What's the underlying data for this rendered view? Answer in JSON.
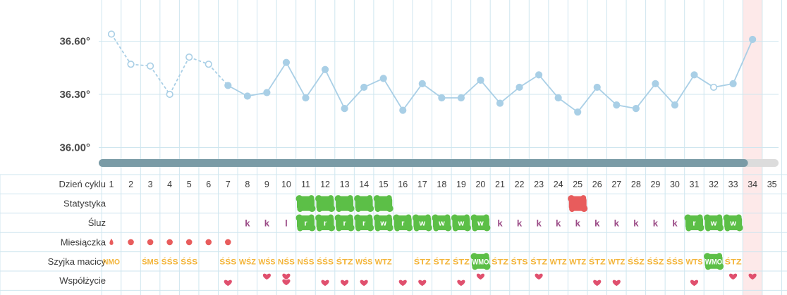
{
  "chart_data": {
    "type": "line",
    "y_ticks": [
      "36.60°",
      "36.30°",
      "36.00°"
    ],
    "y_tick_values": [
      36.6,
      36.3,
      36.0
    ],
    "ylim": [
      35.95,
      36.66
    ],
    "days": [
      "1",
      "2",
      "3",
      "4",
      "5",
      "6",
      "7",
      "8",
      "9",
      "10",
      "11",
      "12",
      "13",
      "14",
      "15",
      "16",
      "17",
      "18",
      "19",
      "20",
      "21",
      "22",
      "23",
      "24",
      "25",
      "26",
      "27",
      "28",
      "29",
      "30",
      "31",
      "32",
      "33",
      "34",
      "35"
    ],
    "current_day": 34,
    "progress_fraction": 0.955,
    "temperatures": [
      {
        "day": 1,
        "value": 36.64,
        "hollow": true
      },
      {
        "day": 2,
        "value": 36.47,
        "hollow": true
      },
      {
        "day": 3,
        "value": 36.46,
        "hollow": true
      },
      {
        "day": 4,
        "value": 36.3,
        "hollow": true
      },
      {
        "day": 5,
        "value": 36.51,
        "hollow": true
      },
      {
        "day": 6,
        "value": 36.47,
        "hollow": true
      },
      {
        "day": 7,
        "value": 36.35,
        "hollow": false
      },
      {
        "day": 8,
        "value": 36.29,
        "hollow": false
      },
      {
        "day": 9,
        "value": 36.31,
        "hollow": false
      },
      {
        "day": 10,
        "value": 36.48,
        "hollow": false
      },
      {
        "day": 11,
        "value": 36.28,
        "hollow": false
      },
      {
        "day": 12,
        "value": 36.44,
        "hollow": false
      },
      {
        "day": 13,
        "value": 36.22,
        "hollow": false
      },
      {
        "day": 14,
        "value": 36.34,
        "hollow": false
      },
      {
        "day": 15,
        "value": 36.39,
        "hollow": false
      },
      {
        "day": 16,
        "value": 36.21,
        "hollow": false
      },
      {
        "day": 17,
        "value": 36.36,
        "hollow": false
      },
      {
        "day": 18,
        "value": 36.28,
        "hollow": false
      },
      {
        "day": 19,
        "value": 36.28,
        "hollow": false
      },
      {
        "day": 20,
        "value": 36.38,
        "hollow": false
      },
      {
        "day": 21,
        "value": 36.25,
        "hollow": false
      },
      {
        "day": 22,
        "value": 36.34,
        "hollow": false
      },
      {
        "day": 23,
        "value": 36.41,
        "hollow": false
      },
      {
        "day": 24,
        "value": 36.28,
        "hollow": false
      },
      {
        "day": 25,
        "value": 36.2,
        "hollow": false
      },
      {
        "day": 26,
        "value": 36.34,
        "hollow": false
      },
      {
        "day": 27,
        "value": 36.24,
        "hollow": false
      },
      {
        "day": 28,
        "value": 36.22,
        "hollow": false
      },
      {
        "day": 29,
        "value": 36.36,
        "hollow": false
      },
      {
        "day": 30,
        "value": 36.24,
        "hollow": false
      },
      {
        "day": 31,
        "value": 36.41,
        "hollow": false
      },
      {
        "day": 32,
        "value": 36.34,
        "hollow": true
      },
      {
        "day": 33,
        "value": 36.36,
        "hollow": false
      },
      {
        "day": 34,
        "value": 36.61,
        "hollow": false
      }
    ],
    "dashed_until_day": 7,
    "colors": {
      "line": "#a9cfe6",
      "grid": "#cfe6ef",
      "progress": "#7a9ba6",
      "progress_track": "#dcdcdc",
      "green": "#5cbf47",
      "red": "#e85c5c",
      "today": "#fde9e9"
    },
    "rows": {
      "labels": [
        "Dzień cyklu",
        "Statystyka",
        "Śluz",
        "Miesiączka",
        "Szyjka macicy",
        "Współżycie"
      ],
      "statystyka": [
        {
          "day": 11,
          "color": "green"
        },
        {
          "day": 12,
          "color": "green"
        },
        {
          "day": 13,
          "color": "green"
        },
        {
          "day": 14,
          "color": "green"
        },
        {
          "day": 15,
          "color": "green"
        },
        {
          "day": 25,
          "color": "red"
        }
      ],
      "sluz": [
        {
          "day": 8,
          "text": "k",
          "blob": false
        },
        {
          "day": 9,
          "text": "k",
          "blob": false
        },
        {
          "day": 10,
          "text": "l",
          "blob": false
        },
        {
          "day": 11,
          "text": "r",
          "blob": true
        },
        {
          "day": 12,
          "text": "r",
          "blob": true
        },
        {
          "day": 13,
          "text": "r",
          "blob": true
        },
        {
          "day": 14,
          "text": "r",
          "blob": true
        },
        {
          "day": 15,
          "text": "w",
          "blob": true
        },
        {
          "day": 16,
          "text": "r",
          "blob": true
        },
        {
          "day": 17,
          "text": "w",
          "blob": true
        },
        {
          "day": 18,
          "text": "w",
          "blob": true
        },
        {
          "day": 19,
          "text": "w",
          "blob": true
        },
        {
          "day": 20,
          "text": "w",
          "blob": true
        },
        {
          "day": 21,
          "text": "k",
          "blob": false
        },
        {
          "day": 22,
          "text": "k",
          "blob": false
        },
        {
          "day": 23,
          "text": "k",
          "blob": false
        },
        {
          "day": 24,
          "text": "k",
          "blob": false
        },
        {
          "day": 25,
          "text": "k",
          "blob": false
        },
        {
          "day": 26,
          "text": "k",
          "blob": false
        },
        {
          "day": 27,
          "text": "k",
          "blob": false
        },
        {
          "day": 28,
          "text": "k",
          "blob": false
        },
        {
          "day": 29,
          "text": "k",
          "blob": false
        },
        {
          "day": 30,
          "text": "k",
          "blob": false
        },
        {
          "day": 31,
          "text": "r",
          "blob": true
        },
        {
          "day": 32,
          "text": "w",
          "blob": true
        },
        {
          "day": 33,
          "text": "w",
          "blob": true
        }
      ],
      "miesiaczka": [
        {
          "day": 1,
          "kind": "drop"
        },
        {
          "day": 2,
          "kind": "dot"
        },
        {
          "day": 3,
          "kind": "dot"
        },
        {
          "day": 4,
          "kind": "dot"
        },
        {
          "day": 5,
          "kind": "dot"
        },
        {
          "day": 6,
          "kind": "dot"
        },
        {
          "day": 7,
          "kind": "dot"
        }
      ],
      "szyjka": [
        {
          "day": 1,
          "text": "NMO",
          "blob": false
        },
        {
          "day": 3,
          "text": "ŚMS",
          "blob": false
        },
        {
          "day": 4,
          "text": "ŚŚS",
          "blob": false
        },
        {
          "day": 5,
          "text": "ŚŚS",
          "blob": false
        },
        {
          "day": 7,
          "text": "ŚŚS",
          "blob": false
        },
        {
          "day": 8,
          "text": "WŚZ",
          "blob": false
        },
        {
          "day": 9,
          "text": "WŚS",
          "blob": false
        },
        {
          "day": 10,
          "text": "NŚS",
          "blob": false
        },
        {
          "day": 11,
          "text": "NŚS",
          "blob": false
        },
        {
          "day": 12,
          "text": "ŚŚS",
          "blob": false
        },
        {
          "day": 13,
          "text": "ŚTZ",
          "blob": false
        },
        {
          "day": 14,
          "text": "WŚS",
          "blob": false
        },
        {
          "day": 15,
          "text": "WTZ",
          "blob": false
        },
        {
          "day": 17,
          "text": "ŚTZ",
          "blob": false
        },
        {
          "day": 18,
          "text": "ŚTZ",
          "blob": false
        },
        {
          "day": 19,
          "text": "ŚTZ",
          "blob": false
        },
        {
          "day": 20,
          "text": "WMO",
          "blob": true
        },
        {
          "day": 21,
          "text": "ŚTZ",
          "blob": false
        },
        {
          "day": 22,
          "text": "ŚTS",
          "blob": false
        },
        {
          "day": 23,
          "text": "ŚTZ",
          "blob": false
        },
        {
          "day": 24,
          "text": "WTZ",
          "blob": false
        },
        {
          "day": 25,
          "text": "WTZ",
          "blob": false
        },
        {
          "day": 26,
          "text": "ŚTZ",
          "blob": false
        },
        {
          "day": 27,
          "text": "WTZ",
          "blob": false
        },
        {
          "day": 28,
          "text": "ŚŚZ",
          "blob": false
        },
        {
          "day": 29,
          "text": "ŚŚZ",
          "blob": false
        },
        {
          "day": 30,
          "text": "ŚŚS",
          "blob": false
        },
        {
          "day": 31,
          "text": "WTS",
          "blob": false
        },
        {
          "day": 32,
          "text": "WMO",
          "blob": true
        },
        {
          "day": 33,
          "text": "ŚTZ",
          "blob": false
        }
      ],
      "wspolzycie": [
        {
          "day": 7,
          "hearts": 1,
          "raised": false
        },
        {
          "day": 9,
          "hearts": 1,
          "raised": true
        },
        {
          "day": 10,
          "hearts": 2,
          "raised": false
        },
        {
          "day": 12,
          "hearts": 1,
          "raised": false
        },
        {
          "day": 13,
          "hearts": 1,
          "raised": false
        },
        {
          "day": 14,
          "hearts": 1,
          "raised": false
        },
        {
          "day": 16,
          "hearts": 1,
          "raised": false
        },
        {
          "day": 17,
          "hearts": 1,
          "raised": false
        },
        {
          "day": 19,
          "hearts": 1,
          "raised": false
        },
        {
          "day": 20,
          "hearts": 1,
          "raised": true
        },
        {
          "day": 23,
          "hearts": 1,
          "raised": true
        },
        {
          "day": 26,
          "hearts": 1,
          "raised": false
        },
        {
          "day": 27,
          "hearts": 1,
          "raised": false
        },
        {
          "day": 31,
          "hearts": 1,
          "raised": false
        },
        {
          "day": 33,
          "hearts": 1,
          "raised": true
        },
        {
          "day": 34,
          "hearts": 1,
          "raised": true
        }
      ]
    }
  }
}
